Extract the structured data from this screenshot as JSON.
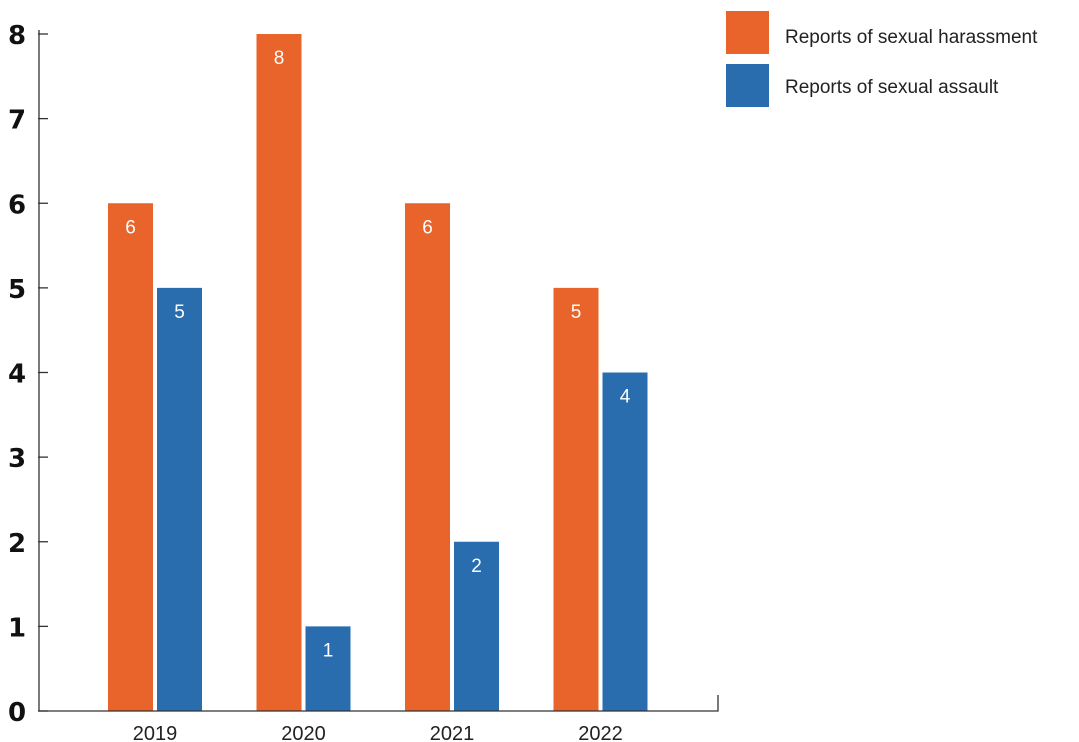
{
  "chart_data": {
    "type": "bar",
    "title": "",
    "xlabel": "",
    "ylabel": "",
    "categories": [
      "2019",
      "2020",
      "2021",
      "2022"
    ],
    "series": [
      {
        "name": "Reports of sexual harassment",
        "color": "#E8642A",
        "values": [
          6,
          8,
          6,
          5
        ]
      },
      {
        "name": "Reports of sexual assault",
        "color": "#2A6DAF",
        "values": [
          5,
          1,
          2,
          4
        ]
      }
    ],
    "ylim": [
      0,
      8
    ],
    "yticks": [
      "0",
      "1",
      "2",
      "3",
      "4",
      "5",
      "6",
      "7",
      "8"
    ],
    "grid": false,
    "legend_position": "top-right",
    "data_labels": true
  }
}
